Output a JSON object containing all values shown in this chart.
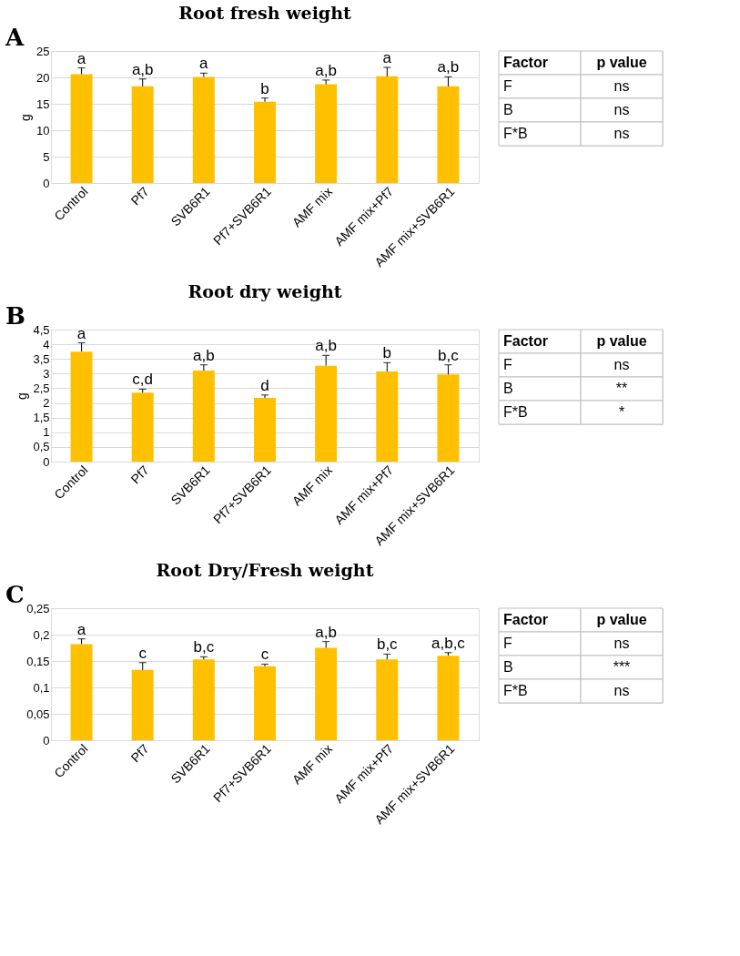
{
  "chart_data": [
    {
      "type": "bar",
      "title": "Root fresh weight",
      "ylabel": "g",
      "color": "#ffc000",
      "categories": [
        "Control",
        "Pf7",
        "SVB6R1",
        "Pf7+SVB6R1",
        "AMF mix",
        "AMF mix+Pf7",
        "AMF mix+SVB6R1"
      ],
      "values": [
        20.6,
        18.3,
        20.1,
        15.4,
        18.7,
        20.2,
        18.3
      ],
      "errors": [
        1.2,
        1.4,
        0.7,
        0.7,
        0.8,
        1.7,
        1.8
      ],
      "ylim": [
        0,
        25
      ],
      "yticks": [
        0,
        5,
        10,
        15,
        20,
        25
      ],
      "grid": "y",
      "annotations": [
        "A",
        {
          "text": "a",
          "x": "Control",
          "y": 21.8
        },
        {
          "text": "a,b",
          "x": "Pf7",
          "y": 19.7
        },
        {
          "text": "a",
          "x": "SVB6R1",
          "y": 20.8
        },
        {
          "text": "b",
          "x": "Pf7+SVB6R1",
          "y": 16.1
        },
        {
          "text": "a,b",
          "x": "AMF mix",
          "y": 19.5
        },
        {
          "text": "a",
          "x": "AMF mix+Pf7",
          "y": 21.9
        },
        {
          "text": "a,b",
          "x": "AMF mix+SVB6R1",
          "y": 20.1
        }
      ]
    },
    {
      "type": "other",
      "annotations": [
        "Factor",
        "p value",
        "F",
        "ns",
        "B",
        "ns",
        "F*B",
        "ns"
      ]
    },
    {
      "type": "bar",
      "title": "Root dry weight",
      "ylabel": "g",
      "color": "#ffc000",
      "categories": [
        "Control",
        "Pf7",
        "SVB6R1",
        "Pf7+SVB6R1",
        "AMF mix",
        "AMF mix+Pf7",
        "AMF mix+SVB6R1"
      ],
      "values": [
        3.75,
        2.35,
        3.1,
        2.17,
        3.27,
        3.07,
        2.97
      ],
      "errors": [
        0.3,
        0.12,
        0.2,
        0.1,
        0.35,
        0.3,
        0.33
      ],
      "ylim": [
        0,
        4.5
      ],
      "yticks": [
        0,
        {
          "value": 0.5,
          "label": "0,5"
        },
        1,
        {
          "value": 1.5,
          "label": "1,5"
        },
        2,
        {
          "value": 2.5,
          "label": "2,5"
        },
        3,
        {
          "value": 3.5,
          "label": "3,5"
        },
        4,
        {
          "value": 4.5,
          "label": "4,5"
        }
      ],
      "grid": "y",
      "annotations": [
        "B",
        {
          "text": "a",
          "x": "Control",
          "y": 4.05
        },
        {
          "text": "c,d",
          "x": "Pf7",
          "y": 2.47
        },
        {
          "text": "a,b",
          "x": "SVB6R1",
          "y": 3.3
        },
        {
          "text": "d",
          "x": "Pf7+SVB6R1",
          "y": 2.27
        },
        {
          "text": "a,b",
          "x": "AMF mix",
          "y": 3.62
        },
        {
          "text": "b",
          "x": "AMF mix+Pf7",
          "y": 3.37
        },
        {
          "text": "b,c",
          "x": "AMF mix+SVB6R1",
          "y": 3.3
        }
      ]
    },
    {
      "type": "other",
      "annotations": [
        "Factor",
        "p value",
        "F",
        "ns",
        "B",
        "**",
        "F*B",
        "*"
      ]
    },
    {
      "type": "bar",
      "title": "Root Dry/Fresh weight",
      "color": "#ffc000",
      "categories": [
        "Control",
        "Pf7",
        "SVB6R1",
        "Pf7+SVB6R1",
        "AMF mix",
        "AMF mix+Pf7",
        "AMF mix+SVB6R1"
      ],
      "values": [
        0.182,
        0.133,
        0.153,
        0.14,
        0.175,
        0.153,
        0.16
      ],
      "errors": [
        0.01,
        0.014,
        0.005,
        0.004,
        0.012,
        0.01,
        0.006
      ],
      "ylim": [
        0,
        0.25
      ],
      "yticks": [
        0,
        {
          "value": 0.05,
          "label": "0,05"
        },
        {
          "value": 0.1,
          "label": "0,1"
        },
        {
          "value": 0.15,
          "label": "0,15"
        },
        {
          "value": 0.2,
          "label": "0,2"
        },
        {
          "value": 0.25,
          "label": "0,25"
        }
      ],
      "grid": "y",
      "annotations": [
        "C",
        {
          "text": "a",
          "x": "Control",
          "y": 0.192
        },
        {
          "text": "c",
          "x": "Pf7",
          "y": 0.147
        },
        {
          "text": "b,c",
          "x": "SVB6R1",
          "y": 0.158
        },
        {
          "text": "c",
          "x": "Pf7+SVB6R1",
          "y": 0.144
        },
        {
          "text": "a,b",
          "x": "AMF mix",
          "y": 0.187
        },
        {
          "text": "b,c",
          "x": "AMF mix+Pf7",
          "y": 0.163
        },
        {
          "text": "a,b,c",
          "x": "AMF mix+SVB6R1",
          "y": 0.166
        }
      ]
    },
    {
      "type": "other",
      "annotations": [
        "Factor",
        "p value",
        "F",
        "ns",
        "B",
        "***",
        "F*B",
        "ns"
      ]
    }
  ]
}
